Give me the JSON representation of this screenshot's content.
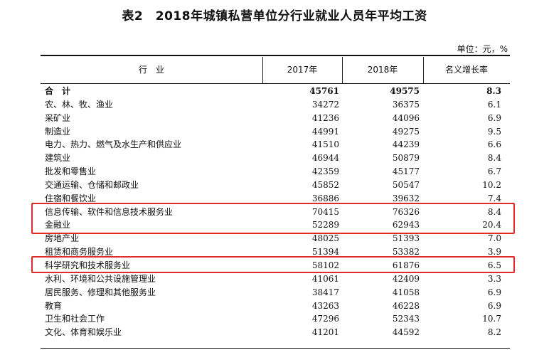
{
  "title": "表2　2018年城镇私营单位分行业就业人员年平均工资",
  "unit_note": "单位：元，%",
  "headers": {
    "industry": "行　业",
    "y2017": "2017年",
    "y2018": "2018年",
    "growth": "名义增长率"
  },
  "rows": [
    {
      "name": "合　计",
      "v2017": "45761",
      "v2018": "49575",
      "growth": "8.3"
    },
    {
      "name": "农、林、牧、渔业",
      "v2017": "34272",
      "v2018": "36375",
      "growth": "6.1"
    },
    {
      "name": "采矿业",
      "v2017": "41236",
      "v2018": "44096",
      "growth": "6.9"
    },
    {
      "name": "制造业",
      "v2017": "44991",
      "v2018": "49275",
      "growth": "9.5"
    },
    {
      "name": "电力、热力、燃气及水生产和供应业",
      "v2017": "41510",
      "v2018": "44239",
      "growth": "6.6"
    },
    {
      "name": "建筑业",
      "v2017": "46944",
      "v2018": "50879",
      "growth": "8.4"
    },
    {
      "name": "批发和零售业",
      "v2017": "42359",
      "v2018": "45177",
      "growth": "6.7"
    },
    {
      "name": "交通运输、仓储和邮政业",
      "v2017": "45852",
      "v2018": "50547",
      "growth": "10.2"
    },
    {
      "name": "住宿和餐饮业",
      "v2017": "36886",
      "v2018": "39632",
      "growth": "7.4"
    },
    {
      "name": "信息传输、软件和信息技术服务业",
      "v2017": "70415",
      "v2018": "76326",
      "growth": "8.4"
    },
    {
      "name": "金融业",
      "v2017": "52289",
      "v2018": "62943",
      "growth": "20.4"
    },
    {
      "name": "房地产业",
      "v2017": "48025",
      "v2018": "51393",
      "growth": "7.0"
    },
    {
      "name": "租赁和商务服务业",
      "v2017": "51394",
      "v2018": "53382",
      "growth": "3.9"
    },
    {
      "name": "科学研究和技术服务业",
      "v2017": "58102",
      "v2018": "61876",
      "growth": "6.5"
    },
    {
      "name": "水利、环境和公共设施管理业",
      "v2017": "41061",
      "v2018": "42409",
      "growth": "3.3"
    },
    {
      "name": "居民服务、修理和其他服务业",
      "v2017": "38417",
      "v2018": "41058",
      "growth": "6.9"
    },
    {
      "name": "教育",
      "v2017": "43263",
      "v2018": "46228",
      "growth": "6.9"
    },
    {
      "name": "卫生和社会工作",
      "v2017": "47296",
      "v2018": "52343",
      "growth": "10.7"
    },
    {
      "name": "文化、体育和娱乐业",
      "v2017": "41201",
      "v2018": "44592",
      "growth": "8.2"
    }
  ],
  "highlight_color": "#e32a2a"
}
